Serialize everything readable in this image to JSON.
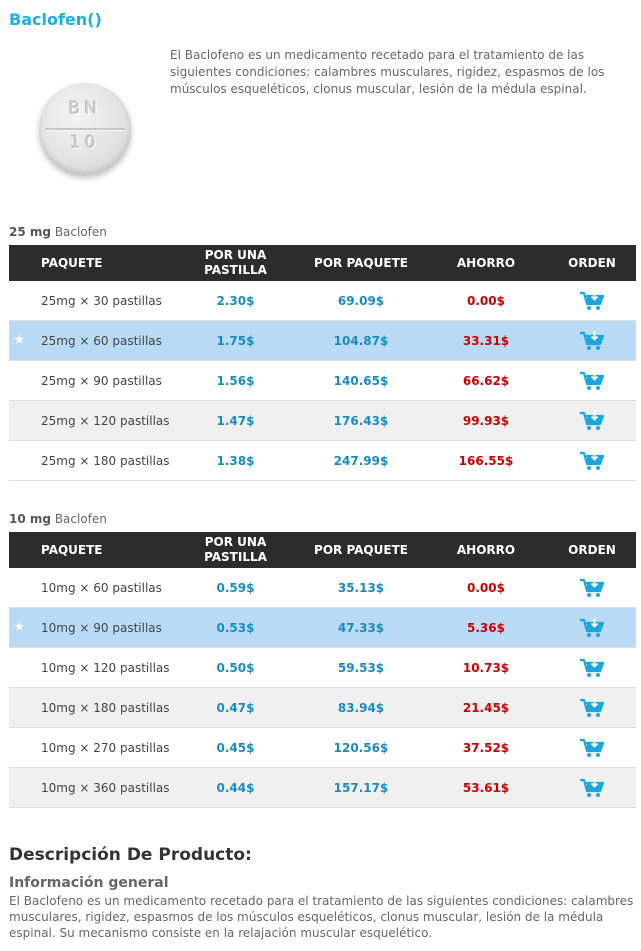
{
  "title": "Baclofen()",
  "pill": {
    "line1": "BN",
    "line2": "10"
  },
  "intro": "El Baclofeno es un medicamento recetado para el tratamiento de las siguientes condiciones: calambres musculares, rigidez, espasmos de los músculos esqueléticos, clonus muscular, lesión de la médula espinal.",
  "headers": {
    "package": "PAQUETE",
    "per_pill": "POR UNA PASTILLA",
    "per_pack": "POR PAQUETE",
    "savings": "AHORRO",
    "order": "ORDEN"
  },
  "sections": [
    {
      "dose": "25 mg",
      "drug": "Baclofen",
      "rows": [
        {
          "package": "25mg × 30 pastillas",
          "per_pill": "2.30$",
          "per_pack": "69.09$",
          "savings": "0.00$",
          "highlight": false
        },
        {
          "package": "25mg × 60 pastillas",
          "per_pill": "1.75$",
          "per_pack": "104.87$",
          "savings": "33.31$",
          "highlight": true
        },
        {
          "package": "25mg × 90 pastillas",
          "per_pill": "1.56$",
          "per_pack": "140.65$",
          "savings": "66.62$",
          "highlight": false
        },
        {
          "package": "25mg × 120 pastillas",
          "per_pill": "1.47$",
          "per_pack": "176.43$",
          "savings": "99.93$",
          "highlight": false
        },
        {
          "package": "25mg × 180 pastillas",
          "per_pill": "1.38$",
          "per_pack": "247.99$",
          "savings": "166.55$",
          "highlight": false
        }
      ]
    },
    {
      "dose": "10 mg",
      "drug": "Baclofen",
      "rows": [
        {
          "package": "10mg × 60 pastillas",
          "per_pill": "0.59$",
          "per_pack": "35.13$",
          "savings": "0.00$",
          "highlight": false
        },
        {
          "package": "10mg × 90 pastillas",
          "per_pill": "0.53$",
          "per_pack": "47.33$",
          "savings": "5.36$",
          "highlight": true
        },
        {
          "package": "10mg × 120 pastillas",
          "per_pill": "0.50$",
          "per_pack": "59.53$",
          "savings": "10.73$",
          "highlight": false
        },
        {
          "package": "10mg × 180 pastillas",
          "per_pill": "0.47$",
          "per_pack": "83.94$",
          "savings": "21.45$",
          "highlight": false
        },
        {
          "package": "10mg × 270 pastillas",
          "per_pill": "0.45$",
          "per_pack": "120.56$",
          "savings": "37.52$",
          "highlight": false
        },
        {
          "package": "10mg × 360 pastillas",
          "per_pill": "0.44$",
          "per_pack": "157.17$",
          "savings": "53.61$",
          "highlight": false
        }
      ]
    }
  ],
  "description": {
    "heading": "Descripción De Producto:",
    "subheading": "Información general",
    "body": "El Baclofeno es un medicamento recetado para el tratamiento de las siguientes condiciones: calambres musculares, rigidez, espasmos de los músculos esqueléticos, clonus muscular, lesión de la médula espinal. Su mecanismo consiste en la relajación muscular esquelético."
  },
  "icons": {
    "cart": "add-to-cart-icon",
    "star": "star-icon"
  },
  "colors": {
    "accent": "#1ab0e8",
    "price": "#1a8bbf",
    "savings": "#cc0000",
    "header_bg": "#2c2c2c",
    "highlight_row": "#b9dbf5"
  }
}
